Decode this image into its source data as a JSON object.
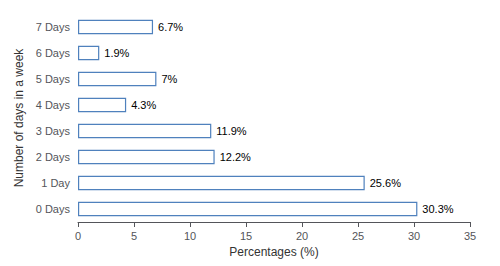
{
  "chart_data": {
    "type": "bar",
    "orientation": "horizontal",
    "categories": [
      "0 Days",
      "1 Day",
      "2 Days",
      "3 Days",
      "4 Days",
      "5 Days",
      "6 Days",
      "7 Days"
    ],
    "values": [
      30.3,
      25.6,
      12.2,
      11.9,
      4.3,
      7.0,
      1.9,
      6.7
    ],
    "value_labels": [
      "30.3%",
      "25.6%",
      "12.2%",
      "11.9%",
      "4.3%",
      "7%",
      "1.9%",
      "6.7%"
    ],
    "data_labels": true,
    "color": "#4f81bd",
    "xlabel": "Percentages (%)",
    "ylabel": "Number of days in a week",
    "xlim": [
      0,
      35
    ],
    "xticks": [
      0,
      5,
      10,
      15,
      20,
      25,
      30,
      35
    ],
    "grid": false
  }
}
